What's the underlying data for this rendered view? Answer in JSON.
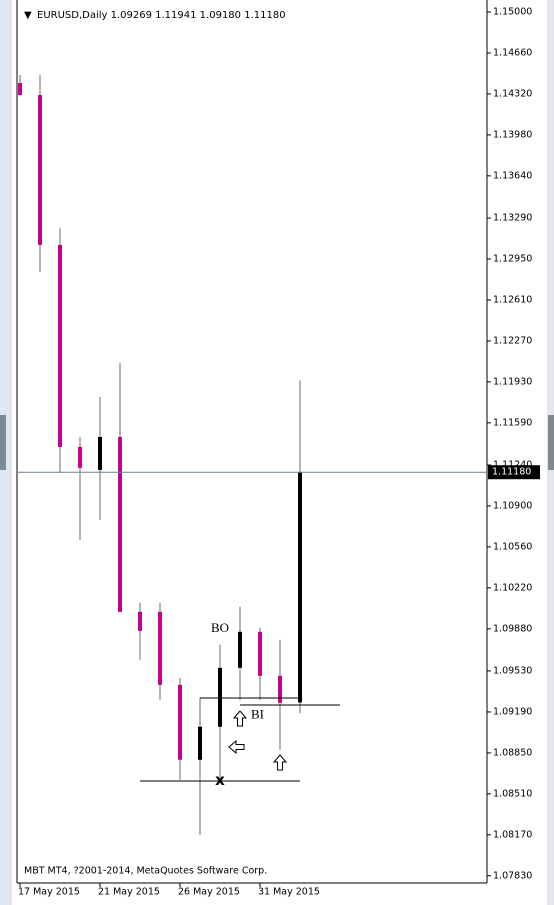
{
  "chart_data": {
    "type": "candlestick",
    "title": "EURUSD,Daily  1.09269 1.11941 1.09180 1.11180",
    "footer": "MBT MT4, ?2001-2014, MetaQuotes Software Corp.",
    "categories": [
      "17 May 2015",
      null,
      null,
      null,
      "21 May 2015",
      null,
      null,
      null,
      "26 May 2015",
      null,
      null,
      null,
      "31 May 2015",
      null,
      null
    ],
    "open": [
      1.14411,
      1.14311,
      1.13067,
      1.1139,
      1.11199,
      1.11473,
      1.10021,
      1.10021,
      1.09415,
      1.08793,
      1.09067,
      1.09556,
      1.09855,
      1.0949,
      1.09269
    ],
    "high": [
      1.14477,
      1.14477,
      1.13208,
      1.11473,
      1.11805,
      1.12087,
      1.10096,
      1.10096,
      1.09473,
      1.09307,
      1.09747,
      1.10063,
      1.09888,
      1.09789,
      1.11941
    ],
    "low": [
      1.14311,
      1.12843,
      1.11175,
      1.10619,
      1.10785,
      1.10021,
      1.09623,
      1.09291,
      1.08627,
      1.08171,
      1.08627,
      1.09291,
      1.09291,
      1.08876,
      1.0918
    ],
    "close": [
      1.14311,
      1.13067,
      1.1139,
      1.11216,
      1.11473,
      1.10021,
      1.09863,
      1.09415,
      1.08793,
      1.09067,
      1.09556,
      1.09855,
      1.0949,
      1.09266,
      1.1118
    ],
    "bull_color": "#000000",
    "bear_color": "#c8008c",
    "wick_color": "#b4b4b4",
    "ylim": [
      1.0777,
      1.151
    ],
    "yticks": [
      {
        "value": 1.15,
        "label": "1.15000"
      },
      {
        "value": 1.1466,
        "label": "1.14660"
      },
      {
        "value": 1.1432,
        "label": "1.14320"
      },
      {
        "value": 1.1398,
        "label": "1.13980"
      },
      {
        "value": 1.1364,
        "label": "1.13640"
      },
      {
        "value": 1.1329,
        "label": "1.13290"
      },
      {
        "value": 1.1295,
        "label": "1.12950"
      },
      {
        "value": 1.1261,
        "label": "1.12610"
      },
      {
        "value": 1.1227,
        "label": "1.12270"
      },
      {
        "value": 1.1193,
        "label": "1.11930"
      },
      {
        "value": 1.1159,
        "label": "1.11590"
      },
      {
        "value": 1.1124,
        "label": "1.11240"
      },
      {
        "value": 1.109,
        "label": "1.10900"
      },
      {
        "value": 1.1056,
        "label": "1.10560"
      },
      {
        "value": 1.1022,
        "label": "1.10220"
      },
      {
        "value": 1.0988,
        "label": "1.09880"
      },
      {
        "value": 1.0953,
        "label": "1.09530"
      },
      {
        "value": 1.0919,
        "label": "1.09190"
      },
      {
        "value": 1.0885,
        "label": "1.08850"
      },
      {
        "value": 1.0851,
        "label": "1.08510"
      },
      {
        "value": 1.0817,
        "label": "1.08170"
      },
      {
        "value": 1.0783,
        "label": "1.07830"
      }
    ],
    "current_price": {
      "value": 1.1118,
      "label": "1.11180"
    },
    "annotations": [
      {
        "text": "BO",
        "index": 10,
        "price": 1.0988
      },
      {
        "text": "BI",
        "index": 12,
        "price": 1.0916
      },
      {
        "text": "x",
        "index": 10,
        "price": 1.0862
      }
    ]
  }
}
